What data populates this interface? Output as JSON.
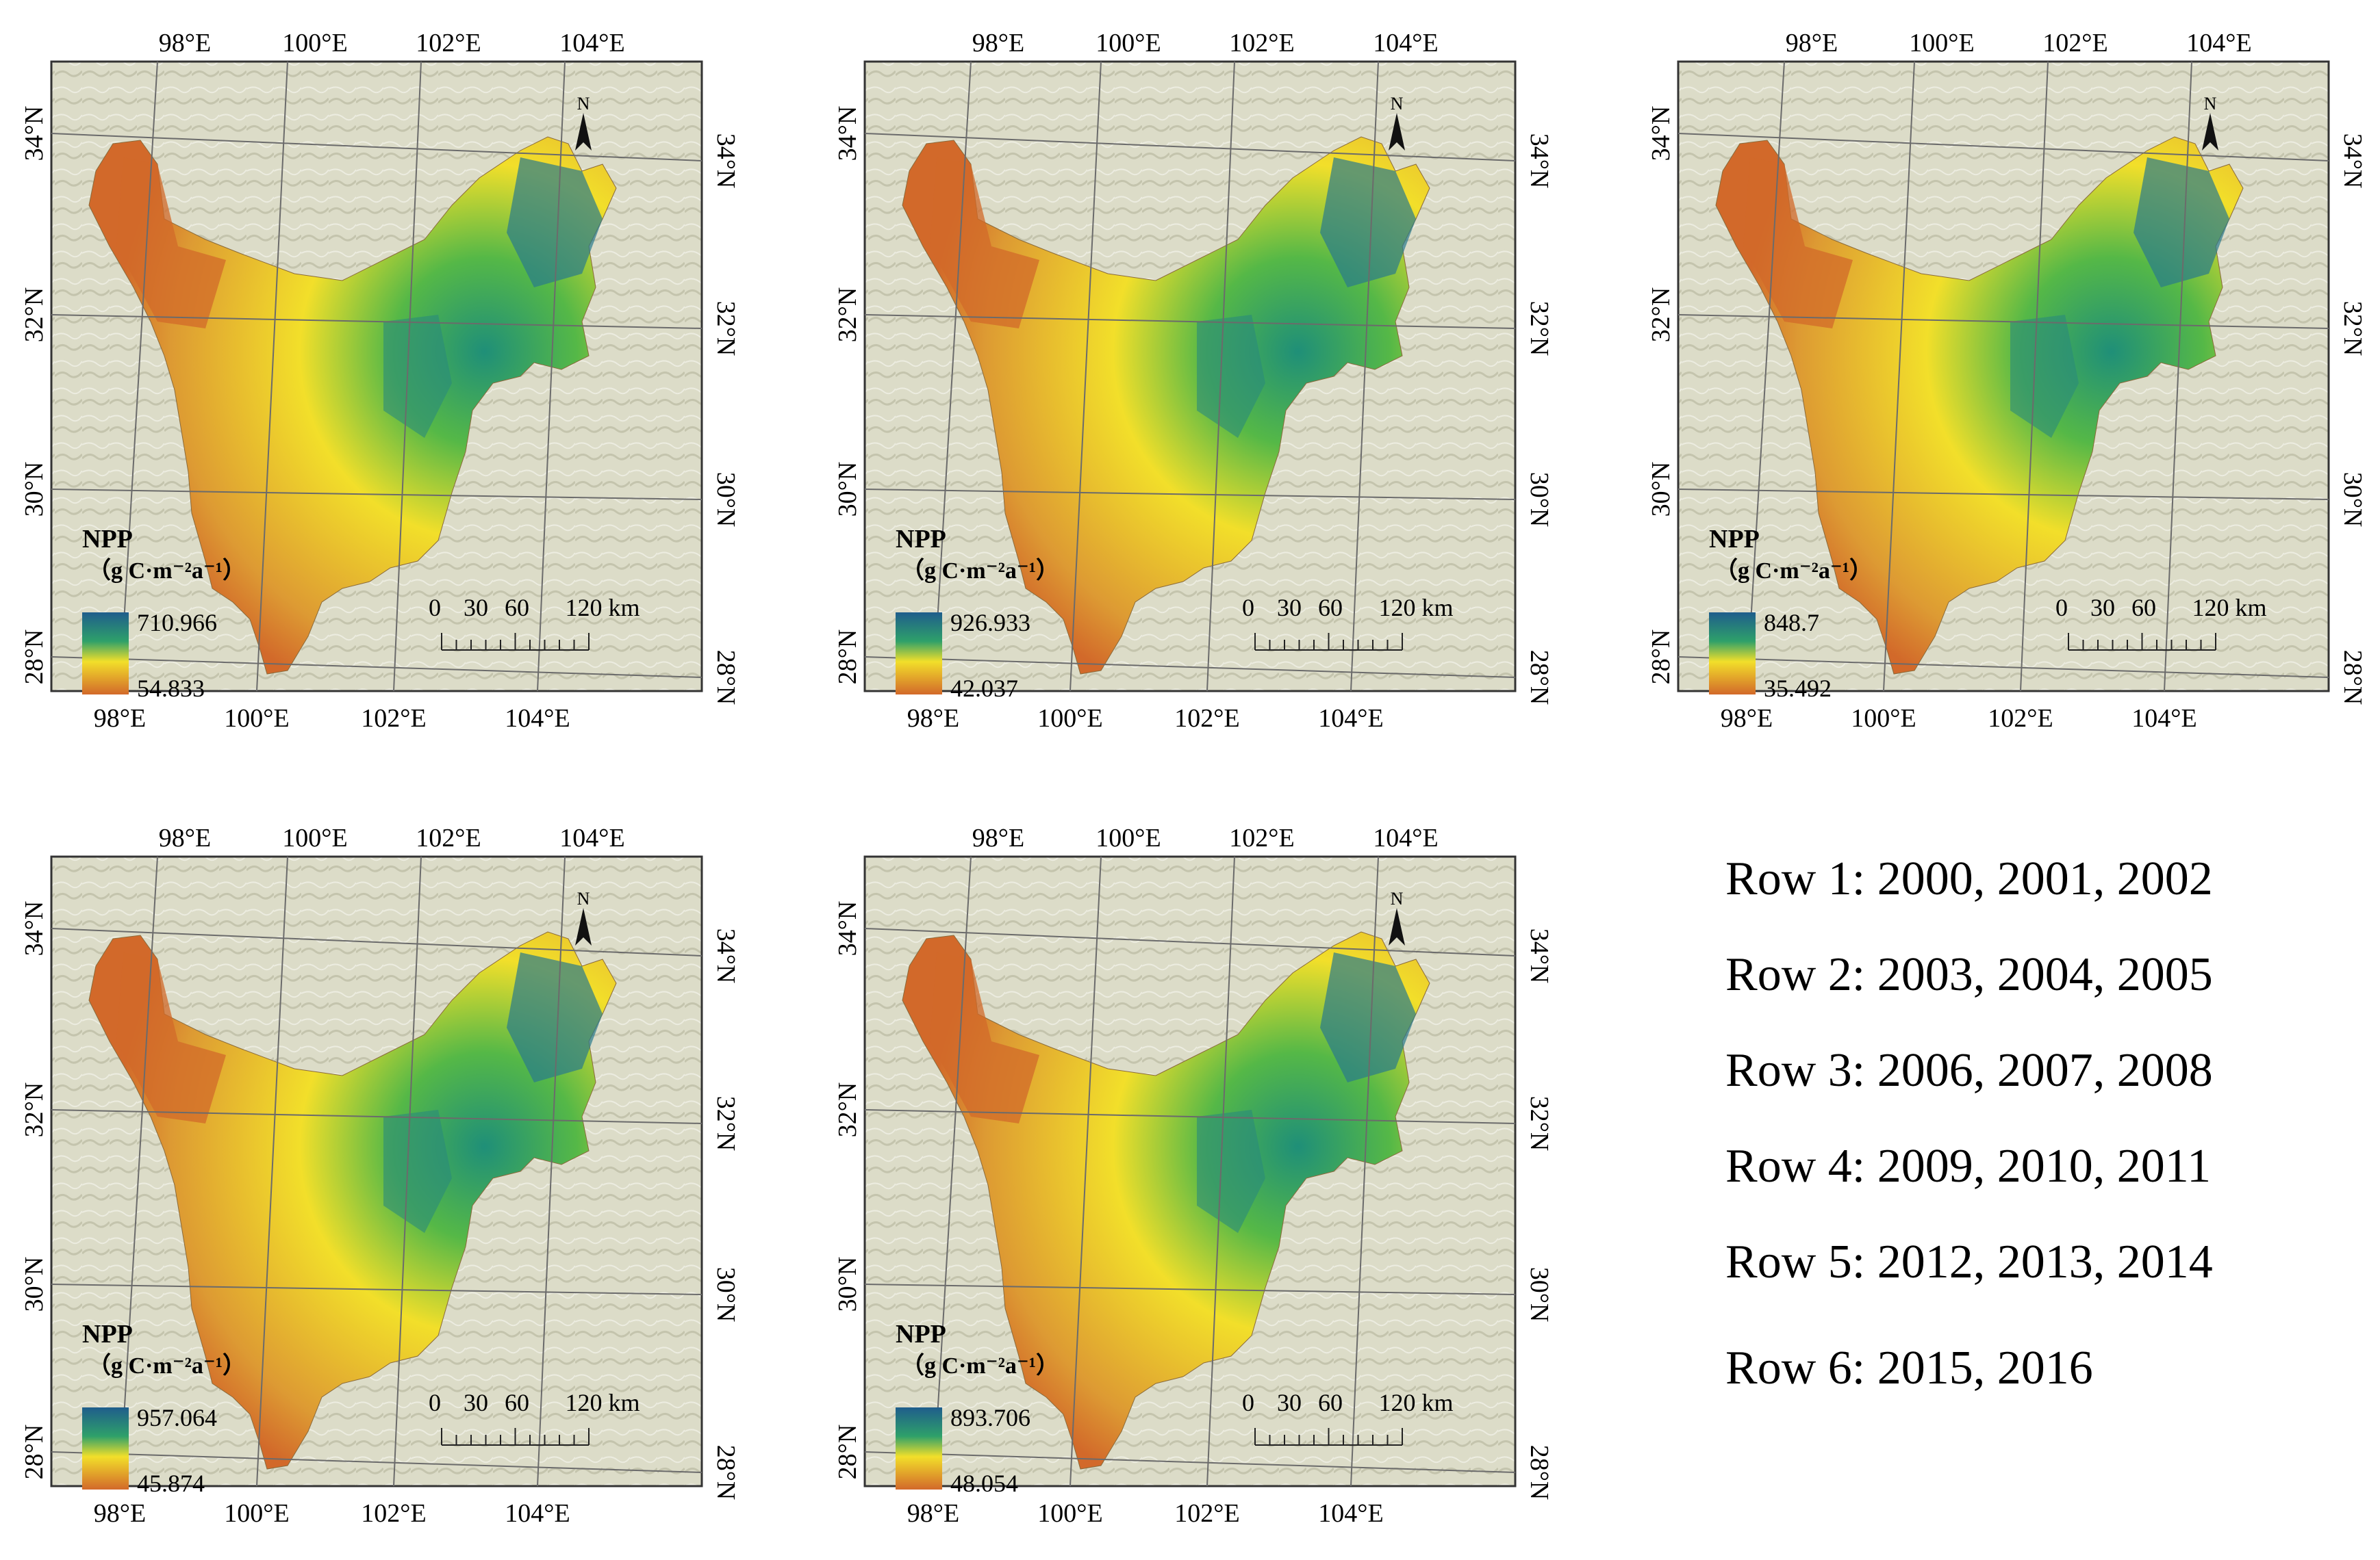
{
  "maps": [
    {
      "id": "map-1",
      "legend_title": "NPP",
      "legend_unit": "（g C·m⁻²a⁻¹）",
      "max": "710.966",
      "min": "54.833",
      "scale_labels": [
        "0",
        "30",
        "60",
        "120 km"
      ],
      "north": "N"
    },
    {
      "id": "map-2",
      "legend_title": "NPP",
      "legend_unit": "（g C·m⁻²a⁻¹）",
      "max": "926.933",
      "min": "42.037",
      "scale_labels": [
        "0",
        "30",
        "60",
        "120 km"
      ],
      "north": "N"
    },
    {
      "id": "map-3",
      "legend_title": "NPP",
      "legend_unit": "（g C·m⁻²a⁻¹）",
      "max": "848.7",
      "min": "35.492",
      "scale_labels": [
        "0",
        "30",
        "60",
        "120 km"
      ],
      "north": "N"
    },
    {
      "id": "map-4",
      "legend_title": "NPP",
      "legend_unit": "（g C·m⁻²a⁻¹）",
      "max": "957.064",
      "min": "45.874",
      "scale_labels": [
        "0",
        "30",
        "60",
        "120 km"
      ],
      "north": "N"
    },
    {
      "id": "map-5",
      "legend_title": "NPP",
      "legend_unit": "（g C·m⁻²a⁻¹）",
      "max": "893.706",
      "min": "48.054",
      "scale_labels": [
        "0",
        "30",
        "60",
        "120 km"
      ],
      "north": "N"
    }
  ],
  "graticule": {
    "lon_labels": [
      "98°E",
      "100°E",
      "102°E",
      "104°E"
    ],
    "lat_labels": [
      "34°N",
      "32°N",
      "30°N",
      "28°N"
    ]
  },
  "year_rows": [
    "Row 1: 2000, 2001, 2002",
    "Row 2: 2003, 2004, 2005",
    "Row 3: 2006, 2007, 2008",
    "Row 4: 2009, 2010, 2011",
    "Row 5: 2012, 2013, 2014",
    "Row 6: 2015, 2016"
  ],
  "colors": {
    "background_terrain": "#dcdcc8",
    "npp_low": "#d2692a",
    "npp_mid": "#f2df2a",
    "npp_high": "#1f5d8c",
    "frame": "#333333"
  }
}
